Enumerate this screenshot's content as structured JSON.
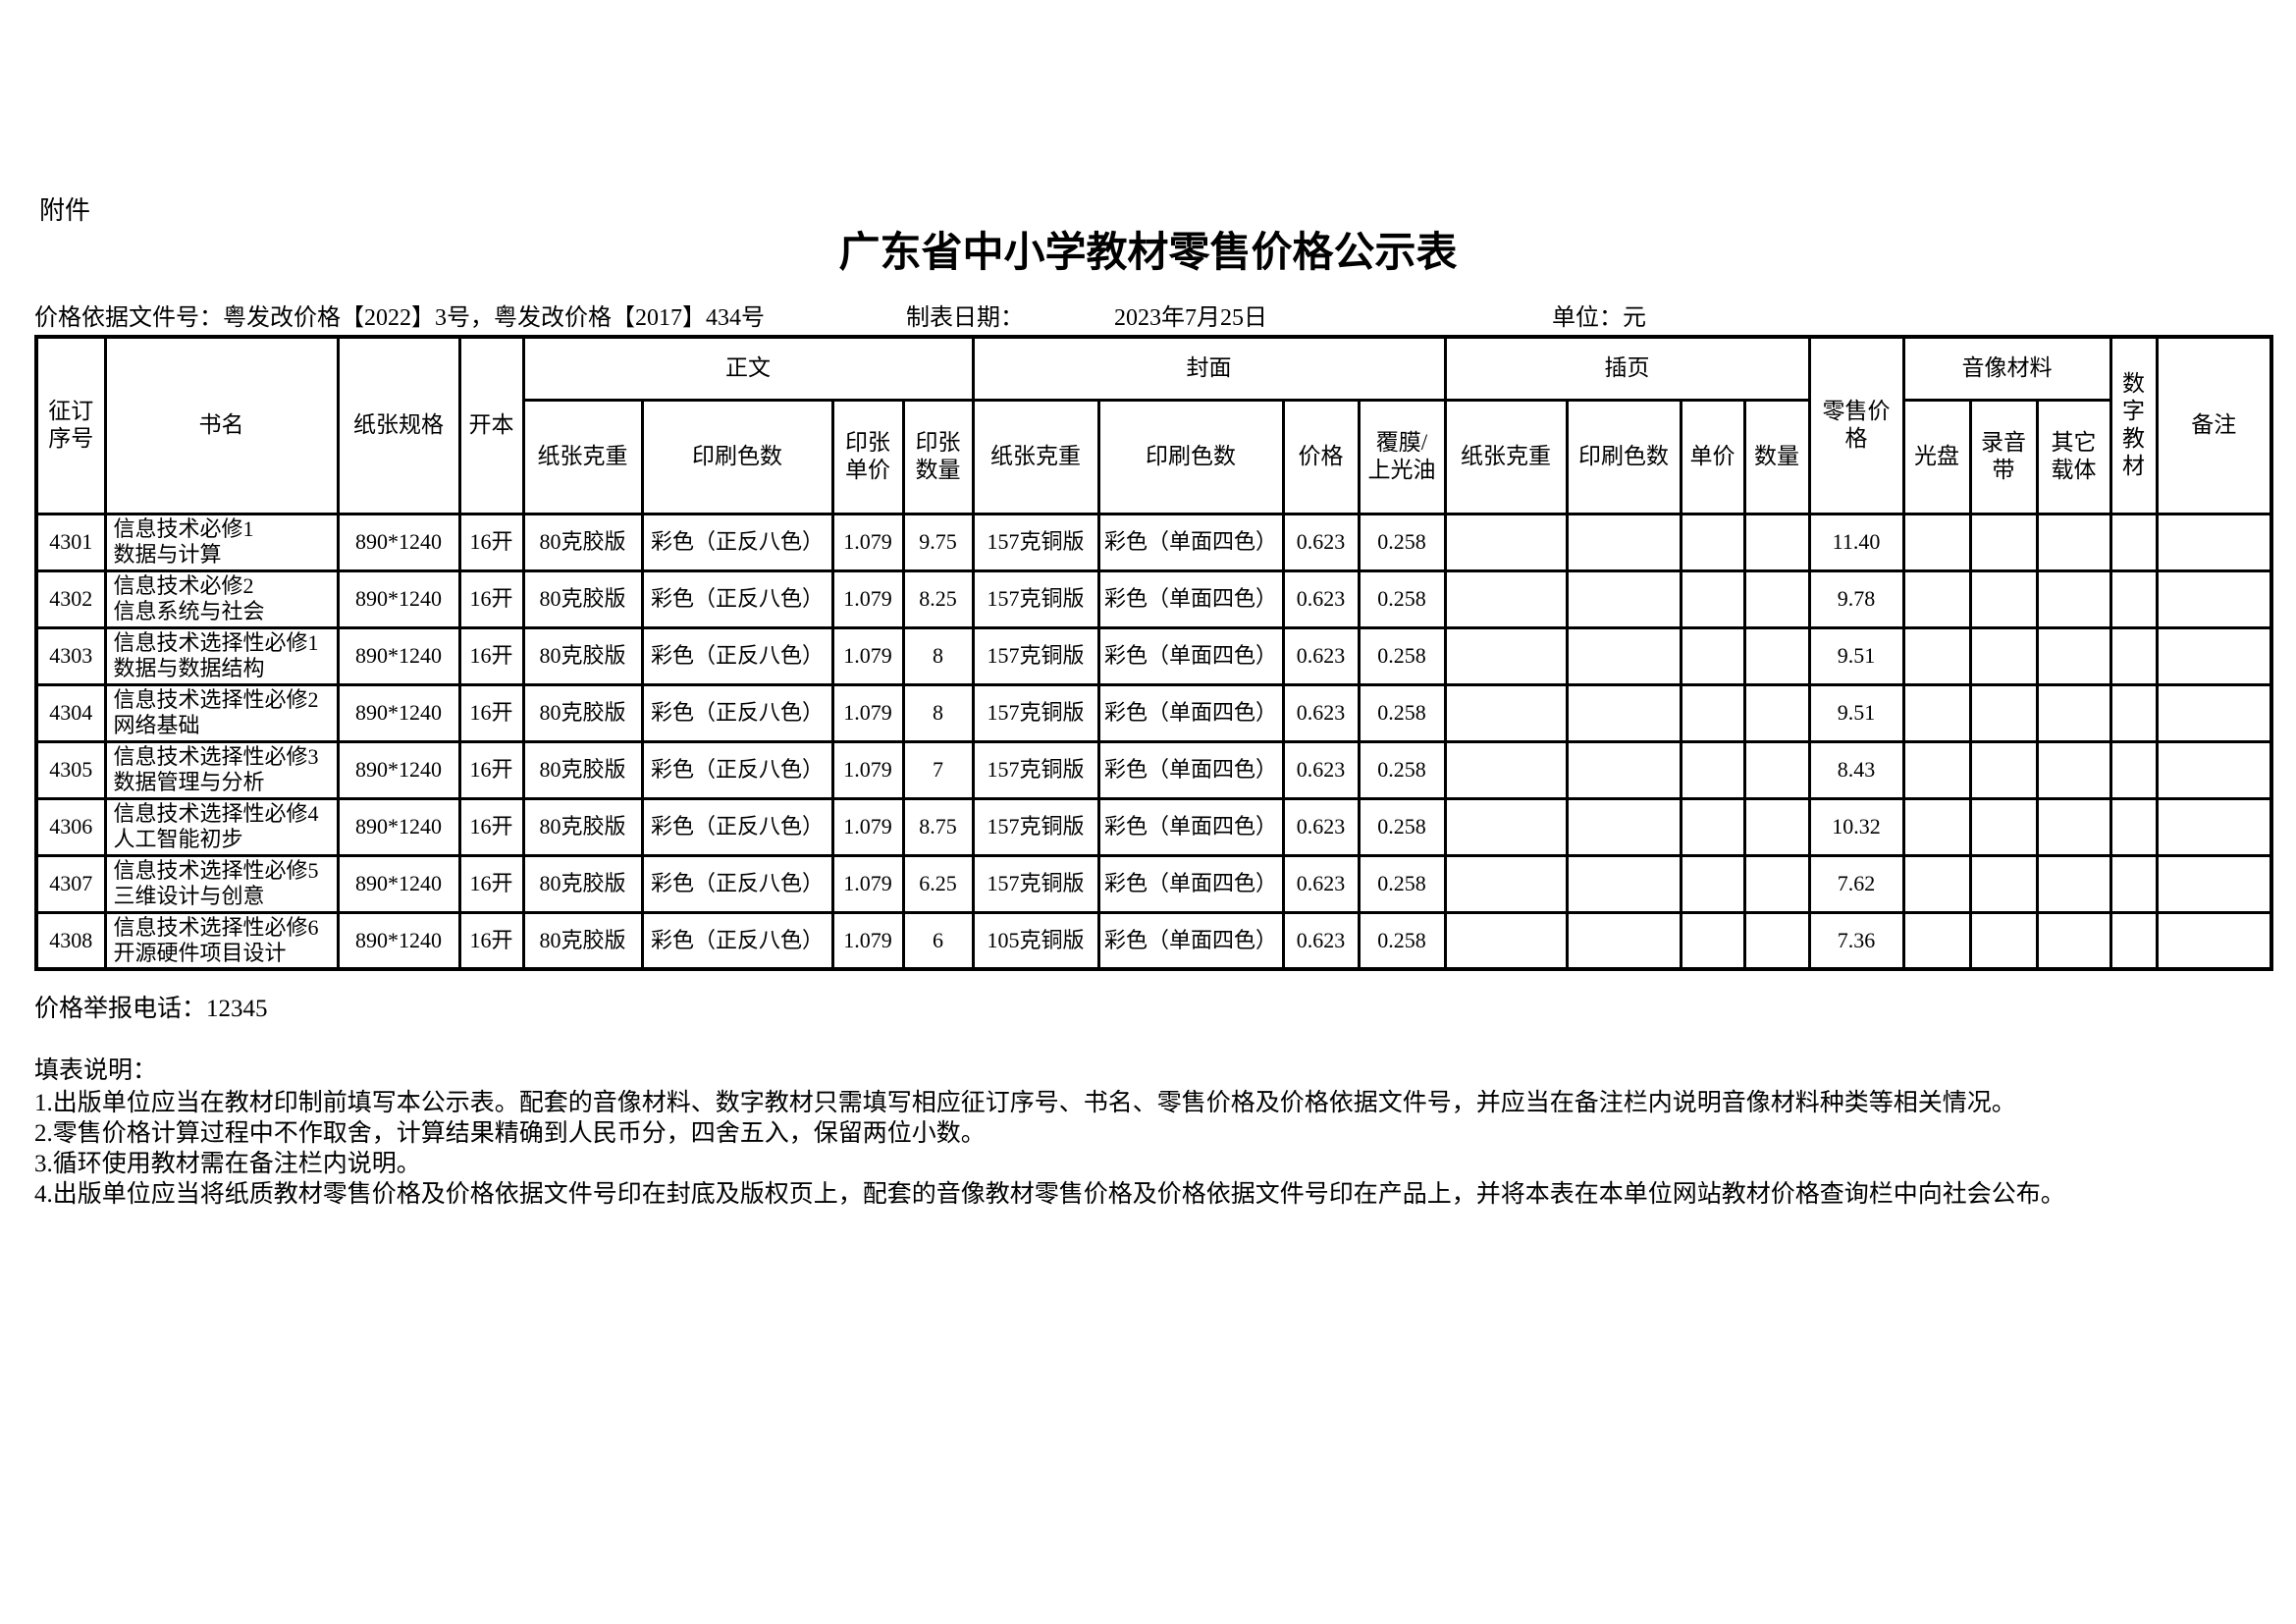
{
  "page": {
    "attachment_label": "附件",
    "title": "广东省中小学教材零售价格公示表",
    "price_basis": "价格依据文件号：粤发改价格【2022】3号，粤发改价格【2017】434号",
    "date_label": "制表日期：",
    "date_value": "2023年7月25日",
    "unit_label": "单位：元"
  },
  "table": {
    "column_keys": [
      "order_no",
      "book_name",
      "paper_spec",
      "format",
      "text_paper_weight",
      "text_print_colors",
      "sheet_unit_price",
      "sheet_quantity",
      "cover_paper_weight",
      "cover_print_colors",
      "cover_price",
      "cover_coating",
      "insert_paper_weight",
      "insert_print_colors",
      "insert_unit_price",
      "insert_quantity",
      "retail_price",
      "cd",
      "tape",
      "other_media",
      "digital_textbook",
      "remarks"
    ],
    "group_headers": {
      "main_text": "正文",
      "cover": "封面",
      "insert": "插页",
      "av_materials": "音像材料"
    },
    "headers": {
      "order_no": "征订\n序号",
      "book_name": "书名",
      "paper_spec": "纸张规格",
      "format": "开本",
      "text_paper_weight": "纸张克重",
      "text_print_colors": "印刷色数",
      "sheet_unit_price": "印张\n单价",
      "sheet_quantity": "印张\n数量",
      "cover_paper_weight": "纸张克重",
      "cover_print_colors": "印刷色数",
      "cover_price": "价格",
      "cover_coating": "覆膜/\n上光油",
      "insert_paper_weight": "纸张克重",
      "insert_print_colors": "印刷色数",
      "insert_unit_price": "单价",
      "insert_quantity": "数量",
      "retail_price": "零售价\n格",
      "cd": "光盘",
      "tape": "录音\n带",
      "other_media": "其它\n载体",
      "digital_textbook": "数\n字\n教\n材",
      "remarks": "备注"
    },
    "rows": [
      {
        "cells": [
          "4301",
          "信息技术必修1\n数据与计算",
          "890*1240",
          "16开",
          "80克胶版",
          "彩色（正反八色）",
          "1.079",
          "9.75",
          "157克铜版",
          "彩色（单面四色）",
          "0.623",
          "0.258",
          "",
          "",
          "",
          "",
          "11.40",
          "",
          "",
          "",
          "",
          ""
        ]
      },
      {
        "cells": [
          "4302",
          "信息技术必修2\n信息系统与社会",
          "890*1240",
          "16开",
          "80克胶版",
          "彩色（正反八色）",
          "1.079",
          "8.25",
          "157克铜版",
          "彩色（单面四色）",
          "0.623",
          "0.258",
          "",
          "",
          "",
          "",
          "9.78",
          "",
          "",
          "",
          "",
          ""
        ]
      },
      {
        "cells": [
          "4303",
          "信息技术选择性必修1\n数据与数据结构",
          "890*1240",
          "16开",
          "80克胶版",
          "彩色（正反八色）",
          "1.079",
          "8",
          "157克铜版",
          "彩色（单面四色）",
          "0.623",
          "0.258",
          "",
          "",
          "",
          "",
          "9.51",
          "",
          "",
          "",
          "",
          ""
        ]
      },
      {
        "cells": [
          "4304",
          "信息技术选择性必修2\n网络基础",
          "890*1240",
          "16开",
          "80克胶版",
          "彩色（正反八色）",
          "1.079",
          "8",
          "157克铜版",
          "彩色（单面四色）",
          "0.623",
          "0.258",
          "",
          "",
          "",
          "",
          "9.51",
          "",
          "",
          "",
          "",
          ""
        ]
      },
      {
        "cells": [
          "4305",
          "信息技术选择性必修3\n数据管理与分析",
          "890*1240",
          "16开",
          "80克胶版",
          "彩色（正反八色）",
          "1.079",
          "7",
          "157克铜版",
          "彩色（单面四色）",
          "0.623",
          "0.258",
          "",
          "",
          "",
          "",
          "8.43",
          "",
          "",
          "",
          "",
          ""
        ]
      },
      {
        "cells": [
          "4306",
          "信息技术选择性必修4\n人工智能初步",
          "890*1240",
          "16开",
          "80克胶版",
          "彩色（正反八色）",
          "1.079",
          "8.75",
          "157克铜版",
          "彩色（单面四色）",
          "0.623",
          "0.258",
          "",
          "",
          "",
          "",
          "10.32",
          "",
          "",
          "",
          "",
          ""
        ]
      },
      {
        "cells": [
          "4307",
          "信息技术选择性必修5\n三维设计与创意",
          "890*1240",
          "16开",
          "80克胶版",
          "彩色（正反八色）",
          "1.079",
          "6.25",
          "157克铜版",
          "彩色（单面四色）",
          "0.623",
          "0.258",
          "",
          "",
          "",
          "",
          "7.62",
          "",
          "",
          "",
          "",
          ""
        ]
      },
      {
        "cells": [
          "4308",
          "信息技术选择性必修6\n开源硬件项目设计",
          "890*1240",
          "16开",
          "80克胶版",
          "彩色（正反八色）",
          "1.079",
          "6",
          "105克铜版",
          "彩色（单面四色）",
          "0.623",
          "0.258",
          "",
          "",
          "",
          "",
          "7.36",
          "",
          "",
          "",
          "",
          ""
        ]
      }
    ]
  },
  "footer": {
    "report_phone": "价格举报电话：12345",
    "notes_title": "填表说明：",
    "notes": [
      "1.出版单位应当在教材印制前填写本公示表。配套的音像材料、数字教材只需填写相应征订序号、书名、零售价格及价格依据文件号，并应当在备注栏内说明音像材料种类等相关情况。",
      "2.零售价格计算过程中不作取舍，计算结果精确到人民币分，四舍五入，保留两位小数。",
      "3.循环使用教材需在备注栏内说明。",
      "4.出版单位应当将纸质教材零售价格及价格依据文件号印在封底及版权页上，配套的音像教材零售价格及价格依据文件号印在产品上，并将本表在本单位网站教材价格查询栏中向社会公布。"
    ]
  }
}
